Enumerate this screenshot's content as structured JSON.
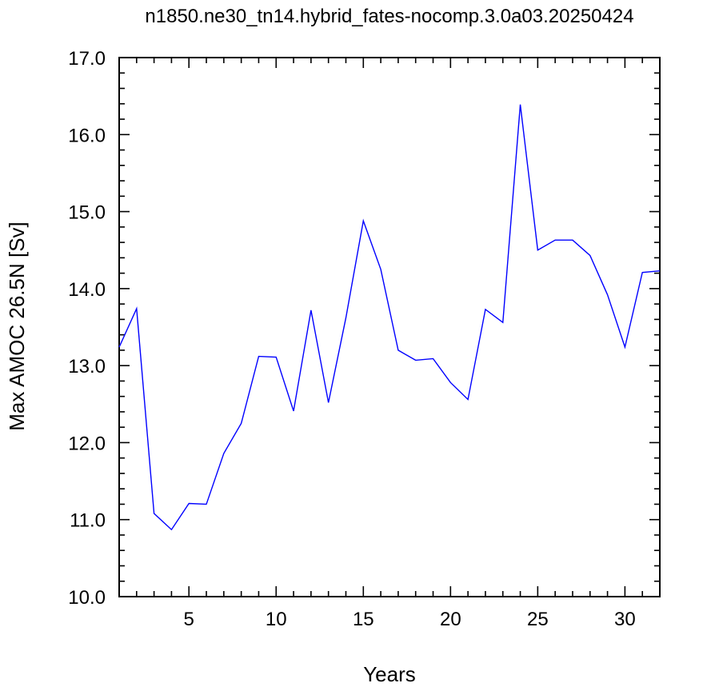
{
  "chart_data": {
    "type": "line",
    "title": "n1850.ne30_tn14.hybrid_fates-nocomp.3.0a03.20250424",
    "xlabel": "Years",
    "ylabel": "Max AMOC 26.5N [Sv]",
    "xlim": [
      1,
      32
    ],
    "ylim": [
      10.0,
      17.0
    ],
    "xticks": [
      5,
      10,
      15,
      20,
      25,
      30
    ],
    "yticks": [
      "10.0",
      "11.0",
      "12.0",
      "13.0",
      "14.0",
      "15.0",
      "16.0",
      "17.0"
    ],
    "grid": false,
    "line_color": "#0000ff",
    "series": [
      {
        "x": [
          1,
          2,
          3,
          4,
          5,
          6,
          7,
          8,
          9,
          10,
          11,
          12,
          13,
          14,
          15,
          16,
          17,
          18,
          19,
          20,
          21,
          22,
          23,
          24,
          25,
          26,
          27,
          28,
          29,
          30,
          31,
          32
        ],
        "values": [
          13.24,
          13.74,
          11.08,
          10.87,
          11.21,
          11.2,
          11.86,
          12.25,
          13.12,
          13.11,
          12.41,
          13.72,
          12.52,
          13.62,
          14.88,
          14.25,
          13.2,
          13.07,
          13.09,
          12.78,
          12.56,
          13.73,
          13.56,
          16.39,
          14.5,
          14.63,
          14.63,
          14.43,
          13.92,
          13.24,
          14.21,
          14.23
        ]
      }
    ]
  }
}
